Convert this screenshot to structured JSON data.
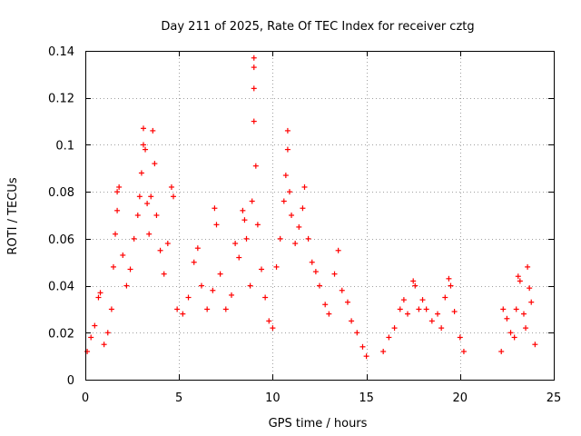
{
  "chart_data": {
    "type": "scatter",
    "title": "Day 211 of 2025, Rate Of TEC Index for receiver cztg",
    "xlabel": "GPS time / hours",
    "ylabel": "ROTI / TECUs",
    "xlim": [
      0,
      25
    ],
    "ylim": [
      0,
      0.14
    ],
    "xticks": [
      0,
      5,
      10,
      15,
      20,
      25
    ],
    "xtick_labels": [
      "0",
      "5",
      "10",
      "15",
      "20",
      "25"
    ],
    "yticks": [
      0,
      0.02,
      0.04,
      0.06,
      0.08,
      0.1,
      0.12,
      0.14
    ],
    "ytick_labels": [
      "0",
      "0.02",
      "0.04",
      "0.06",
      "0.08",
      "0.1",
      "0.12",
      "0.14"
    ],
    "grid": true,
    "marker": "+",
    "color": "#ff0000",
    "series": [
      {
        "name": "ROTI",
        "points": [
          [
            0.1,
            0.012
          ],
          [
            0.3,
            0.018
          ],
          [
            0.5,
            0.023
          ],
          [
            0.7,
            0.035
          ],
          [
            0.8,
            0.037
          ],
          [
            1.0,
            0.015
          ],
          [
            1.2,
            0.02
          ],
          [
            1.4,
            0.03
          ],
          [
            1.5,
            0.048
          ],
          [
            1.6,
            0.062
          ],
          [
            1.7,
            0.072
          ],
          [
            1.7,
            0.08
          ],
          [
            1.8,
            0.082
          ],
          [
            2.0,
            0.053
          ],
          [
            2.2,
            0.04
          ],
          [
            2.4,
            0.047
          ],
          [
            2.6,
            0.06
          ],
          [
            2.8,
            0.07
          ],
          [
            2.9,
            0.078
          ],
          [
            3.0,
            0.088
          ],
          [
            3.1,
            0.1
          ],
          [
            3.1,
            0.107
          ],
          [
            3.2,
            0.098
          ],
          [
            3.3,
            0.075
          ],
          [
            3.4,
            0.062
          ],
          [
            3.5,
            0.078
          ],
          [
            3.6,
            0.106
          ],
          [
            3.7,
            0.092
          ],
          [
            3.8,
            0.07
          ],
          [
            4.0,
            0.055
          ],
          [
            4.2,
            0.045
          ],
          [
            4.4,
            0.058
          ],
          [
            4.6,
            0.082
          ],
          [
            4.7,
            0.078
          ],
          [
            4.9,
            0.03
          ],
          [
            5.2,
            0.028
          ],
          [
            5.5,
            0.035
          ],
          [
            5.8,
            0.05
          ],
          [
            6.0,
            0.056
          ],
          [
            6.2,
            0.04
          ],
          [
            6.5,
            0.03
          ],
          [
            6.8,
            0.038
          ],
          [
            6.9,
            0.073
          ],
          [
            7.0,
            0.066
          ],
          [
            7.2,
            0.045
          ],
          [
            7.5,
            0.03
          ],
          [
            7.8,
            0.036
          ],
          [
            8.0,
            0.058
          ],
          [
            8.2,
            0.052
          ],
          [
            8.4,
            0.072
          ],
          [
            8.5,
            0.068
          ],
          [
            8.6,
            0.06
          ],
          [
            8.8,
            0.04
          ],
          [
            8.9,
            0.076
          ],
          [
            9.0,
            0.11
          ],
          [
            9.0,
            0.124
          ],
          [
            9.0,
            0.137
          ],
          [
            9.0,
            0.133
          ],
          [
            9.1,
            0.091
          ],
          [
            9.2,
            0.066
          ],
          [
            9.4,
            0.047
          ],
          [
            9.6,
            0.035
          ],
          [
            9.8,
            0.025
          ],
          [
            10.0,
            0.022
          ],
          [
            10.2,
            0.048
          ],
          [
            10.4,
            0.06
          ],
          [
            10.6,
            0.076
          ],
          [
            10.7,
            0.087
          ],
          [
            10.8,
            0.098
          ],
          [
            10.8,
            0.106
          ],
          [
            10.9,
            0.08
          ],
          [
            11.0,
            0.07
          ],
          [
            11.2,
            0.058
          ],
          [
            11.4,
            0.065
          ],
          [
            11.6,
            0.073
          ],
          [
            11.7,
            0.082
          ],
          [
            11.9,
            0.06
          ],
          [
            12.1,
            0.05
          ],
          [
            12.3,
            0.046
          ],
          [
            12.5,
            0.04
          ],
          [
            12.8,
            0.032
          ],
          [
            13.0,
            0.028
          ],
          [
            13.3,
            0.045
          ],
          [
            13.5,
            0.055
          ],
          [
            13.7,
            0.038
          ],
          [
            14.0,
            0.033
          ],
          [
            14.2,
            0.025
          ],
          [
            14.5,
            0.02
          ],
          [
            14.8,
            0.014
          ],
          [
            15.0,
            0.01
          ],
          [
            15.9,
            0.012
          ],
          [
            16.2,
            0.018
          ],
          [
            16.5,
            0.022
          ],
          [
            16.8,
            0.03
          ],
          [
            17.0,
            0.034
          ],
          [
            17.2,
            0.028
          ],
          [
            17.5,
            0.042
          ],
          [
            17.6,
            0.04
          ],
          [
            17.8,
            0.03
          ],
          [
            18.0,
            0.034
          ],
          [
            18.2,
            0.03
          ],
          [
            18.5,
            0.025
          ],
          [
            18.8,
            0.028
          ],
          [
            19.0,
            0.022
          ],
          [
            19.2,
            0.035
          ],
          [
            19.4,
            0.043
          ],
          [
            19.5,
            0.04
          ],
          [
            19.7,
            0.029
          ],
          [
            20.0,
            0.018
          ],
          [
            20.2,
            0.012
          ],
          [
            22.2,
            0.012
          ],
          [
            22.3,
            0.03
          ],
          [
            22.5,
            0.026
          ],
          [
            22.7,
            0.02
          ],
          [
            22.9,
            0.018
          ],
          [
            23.0,
            0.03
          ],
          [
            23.1,
            0.044
          ],
          [
            23.2,
            0.042
          ],
          [
            23.4,
            0.028
          ],
          [
            23.5,
            0.022
          ],
          [
            23.6,
            0.048
          ],
          [
            23.7,
            0.039
          ],
          [
            23.8,
            0.033
          ],
          [
            24.0,
            0.015
          ]
        ]
      }
    ]
  }
}
